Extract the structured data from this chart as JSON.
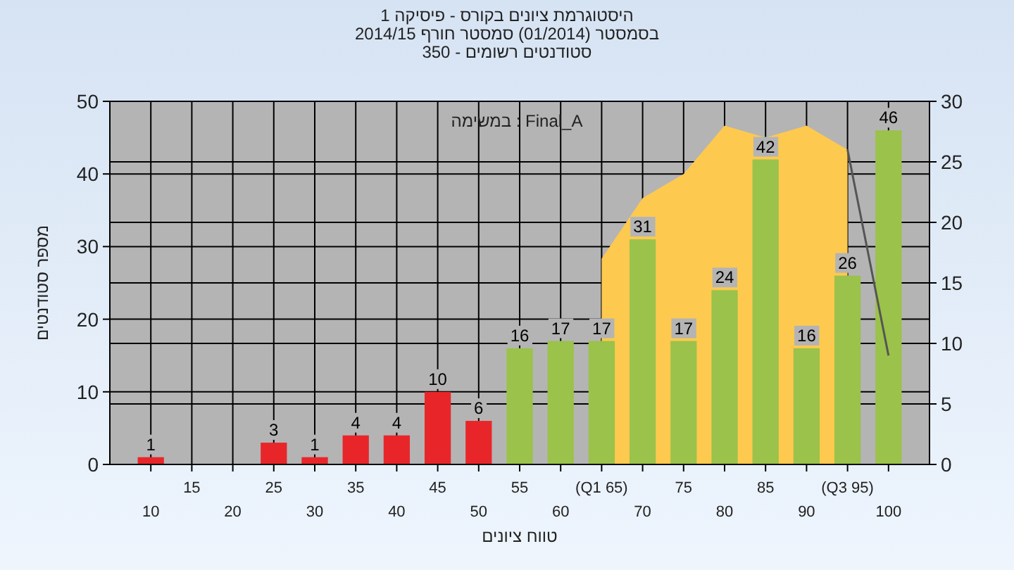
{
  "chart_data": {
    "type": "bar",
    "title": "היסטוגרמת ציונים בקורס - פיסיקה 1",
    "subtitle": "בסמסטר (01/2014) סמסטר חורף 2014/15\nסטודנטים רשומים - 350",
    "xlabel": "טווח ציונים",
    "ylabel": "מספר סטודנטים",
    "annotations": [
      "במשימה : Final_A"
    ],
    "categories": [
      "10",
      "15",
      "20",
      "25",
      "30",
      "35",
      "40",
      "45",
      "50",
      "55",
      "60",
      "(Q1 65)",
      "70",
      "75",
      "80",
      "85",
      "90",
      "(Q3 95)",
      "100"
    ],
    "series": [
      {
        "type": "area",
        "axis": "y2",
        "color": "#fec94f",
        "values": [
          null,
          null,
          null,
          null,
          null,
          null,
          null,
          null,
          null,
          null,
          null,
          17,
          22,
          24,
          28,
          27,
          28,
          26,
          null
        ]
      },
      {
        "values": [
          1,
          0,
          0,
          3,
          1,
          4,
          4,
          10,
          6,
          16,
          17,
          17,
          31,
          17,
          24,
          42,
          16,
          26,
          46
        ],
        "colors": [
          "#e8262a",
          "#e8262a",
          "#e8262a",
          "#e8262a",
          "#e8262a",
          "#e8262a",
          "#e8262a",
          "#e8262a",
          "#e8262a",
          "#9bc24a",
          "#9bc24a",
          "#9bc24a",
          "#9bc24a",
          "#9bc24a",
          "#9bc24a",
          "#9bc24a",
          "#9bc24a",
          "#9bc24a",
          "#9bc24a"
        ],
        "value_labels": [
          "1",
          null,
          null,
          "3",
          "1",
          "4",
          "4",
          "10",
          "6",
          "16",
          "17",
          "17",
          "31",
          "17",
          "24",
          "42",
          "16",
          "26",
          "46"
        ]
      },
      {
        "type": "line",
        "axis": "y2",
        "color": "#555555",
        "values": [
          null,
          null,
          null,
          null,
          null,
          null,
          null,
          null,
          null,
          null,
          null,
          null,
          null,
          null,
          null,
          null,
          null,
          26,
          9
        ]
      }
    ],
    "ylim": [
      0,
      50
    ],
    "yticks": [
      0,
      10,
      20,
      30,
      40,
      50
    ],
    "y2lim": [
      0,
      30
    ],
    "y2ticks": [
      0,
      5,
      10,
      15,
      20,
      25,
      30
    ],
    "grid": true
  }
}
